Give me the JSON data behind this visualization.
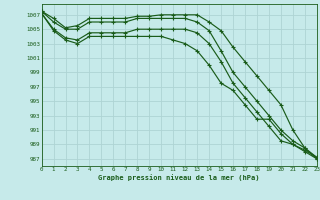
{
  "background_color": "#c6eaea",
  "grid_color": "#aed4d4",
  "line_color": "#1a5c1a",
  "title": "Graphe pression niveau de la mer (hPa)",
  "xlim": [
    0,
    23
  ],
  "ylim": [
    986,
    1008.5
  ],
  "yticks": [
    987,
    989,
    991,
    993,
    995,
    997,
    999,
    1001,
    1003,
    1005,
    1007
  ],
  "xticks": [
    0,
    1,
    2,
    3,
    4,
    5,
    6,
    7,
    8,
    9,
    10,
    11,
    12,
    13,
    14,
    15,
    16,
    17,
    18,
    19,
    20,
    21,
    22,
    23
  ],
  "series": [
    [
      1007.5,
      1006.5,
      1005.2,
      1005.5,
      1006.5,
      1006.5,
      1006.5,
      1006.5,
      1006.8,
      1006.8,
      1007.0,
      1007.0,
      1007.0,
      1007.0,
      1006.0,
      1004.8,
      1002.5,
      1000.5,
      998.5,
      996.5,
      994.5,
      991.0,
      988.5,
      987.0
    ],
    [
      1007.5,
      1006.0,
      1005.0,
      1005.0,
      1006.0,
      1006.0,
      1006.0,
      1006.0,
      1006.5,
      1006.5,
      1006.5,
      1006.5,
      1006.5,
      1006.0,
      1004.8,
      1002.0,
      999.0,
      997.0,
      995.0,
      993.0,
      991.0,
      989.5,
      988.5,
      987.2
    ],
    [
      1007.2,
      1005.0,
      1003.8,
      1003.5,
      1004.5,
      1004.5,
      1004.5,
      1004.5,
      1005.0,
      1005.0,
      1005.0,
      1005.0,
      1005.0,
      1004.5,
      1003.0,
      1000.5,
      997.5,
      995.5,
      993.5,
      991.5,
      989.5,
      989.0,
      988.2,
      987.2
    ],
    [
      1007.2,
      1004.8,
      1003.5,
      1003.0,
      1004.0,
      1004.0,
      1004.0,
      1004.0,
      1004.0,
      1004.0,
      1004.0,
      1003.5,
      1003.0,
      1002.0,
      1000.0,
      997.5,
      996.5,
      994.5,
      992.5,
      992.5,
      990.5,
      989.0,
      988.0,
      987.0
    ]
  ]
}
